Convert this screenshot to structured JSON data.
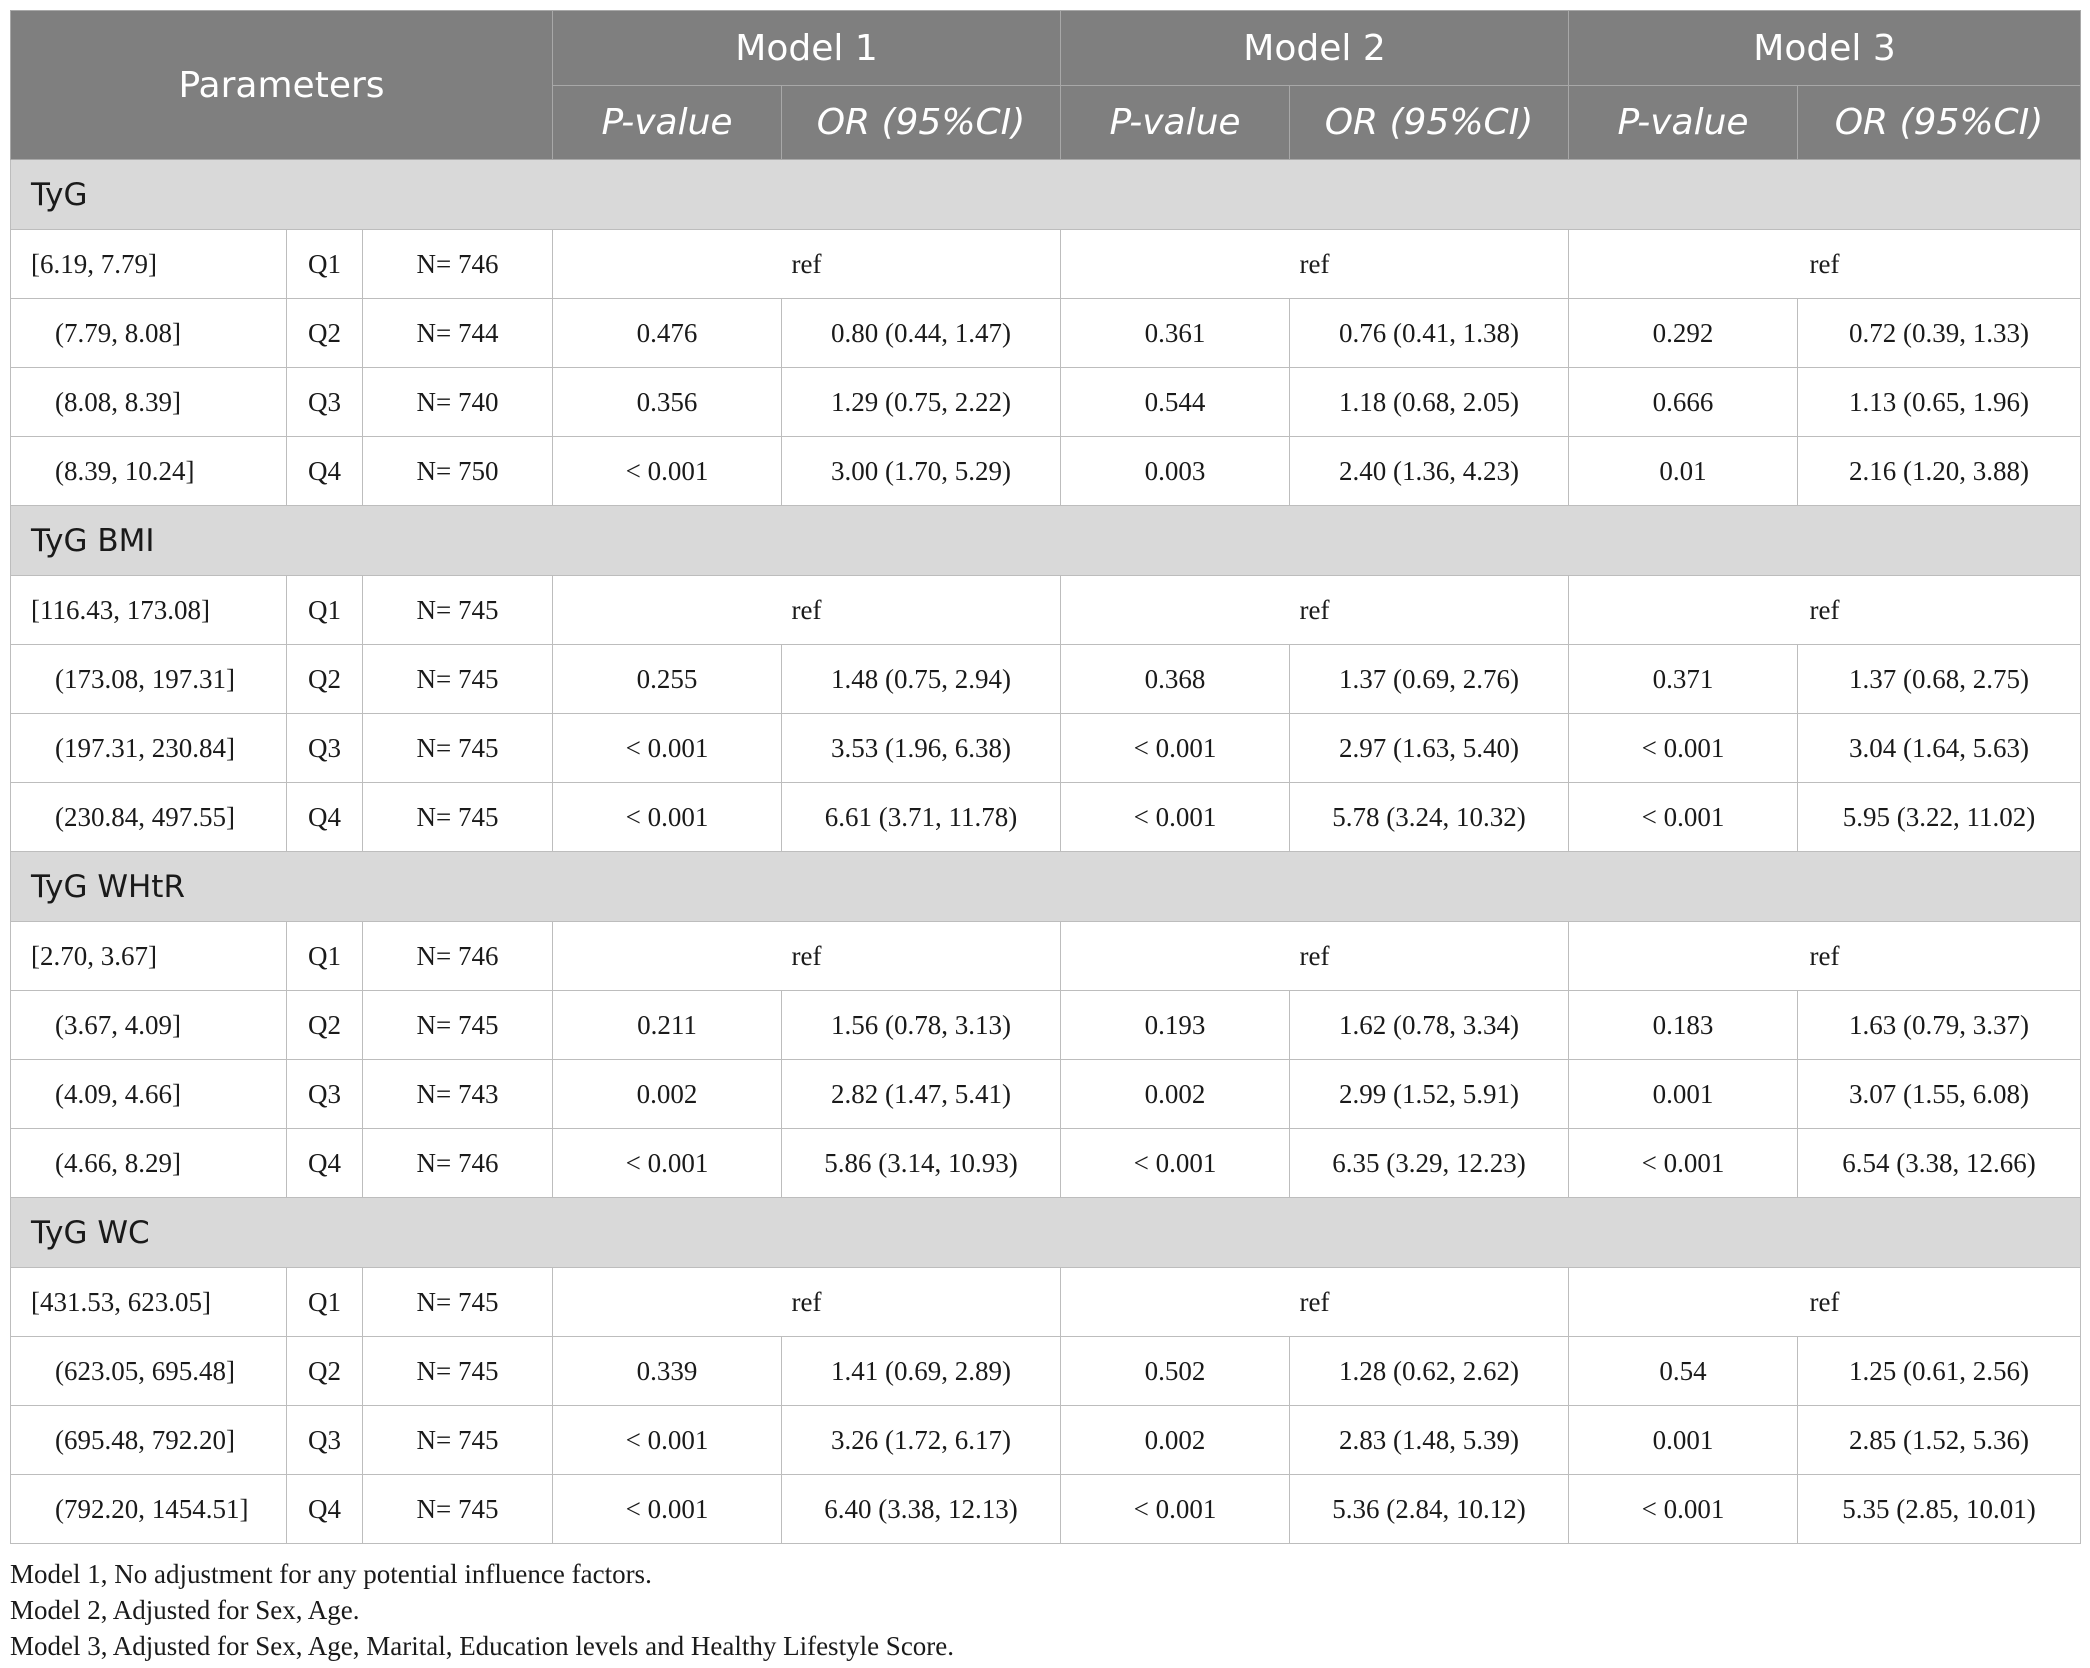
{
  "header": {
    "parameters": "Parameters",
    "models": [
      "Model 1",
      "Model 2",
      "Model 3"
    ],
    "pvalue": "P-value",
    "or": "OR (95%CI)"
  },
  "sections": [
    {
      "name": "TyG",
      "rows": [
        {
          "range": "[6.19, 7.79]",
          "q": "Q1",
          "n": "N= 746",
          "ref": "ref"
        },
        {
          "range": "(7.79, 8.08]",
          "q": "Q2",
          "n": "N= 744",
          "p1": "0.476",
          "or1": "0.80 (0.44, 1.47)",
          "p2": "0.361",
          "or2": "0.76 (0.41, 1.38)",
          "p3": "0.292",
          "or3": "0.72 (0.39, 1.33)"
        },
        {
          "range": "(8.08, 8.39]",
          "q": "Q3",
          "n": "N= 740",
          "p1": "0.356",
          "or1": "1.29 (0.75, 2.22)",
          "p2": "0.544",
          "or2": "1.18 (0.68, 2.05)",
          "p3": "0.666",
          "or3": "1.13 (0.65, 1.96)"
        },
        {
          "range": "(8.39, 10.24]",
          "q": "Q4",
          "n": "N= 750",
          "p1": "< 0.001",
          "or1": "3.00 (1.70, 5.29)",
          "p2": "0.003",
          "or2": "2.40 (1.36, 4.23)",
          "p3": "0.01",
          "or3": "2.16 (1.20, 3.88)"
        }
      ]
    },
    {
      "name": "TyG BMI",
      "rows": [
        {
          "range": "[116.43, 173.08]",
          "q": "Q1",
          "n": "N= 745",
          "ref": "ref"
        },
        {
          "range": "(173.08, 197.31]",
          "q": "Q2",
          "n": "N= 745",
          "p1": "0.255",
          "or1": "1.48 (0.75, 2.94)",
          "p2": "0.368",
          "or2": "1.37 (0.69, 2.76)",
          "p3": "0.371",
          "or3": "1.37 (0.68, 2.75)"
        },
        {
          "range": "(197.31, 230.84]",
          "q": "Q3",
          "n": "N= 745",
          "p1": "< 0.001",
          "or1": "3.53 (1.96, 6.38)",
          "p2": "< 0.001",
          "or2": "2.97 (1.63, 5.40)",
          "p3": "< 0.001",
          "or3": "3.04 (1.64, 5.63)"
        },
        {
          "range": "(230.84, 497.55]",
          "q": "Q4",
          "n": "N= 745",
          "p1": "< 0.001",
          "or1": "6.61 (3.71, 11.78)",
          "p2": "< 0.001",
          "or2": "5.78 (3.24, 10.32)",
          "p3": "< 0.001",
          "or3": "5.95 (3.22, 11.02)"
        }
      ]
    },
    {
      "name": "TyG WHtR",
      "rows": [
        {
          "range": "[2.70, 3.67]",
          "q": "Q1",
          "n": "N= 746",
          "ref": "ref"
        },
        {
          "range": "(3.67, 4.09]",
          "q": "Q2",
          "n": "N= 745",
          "p1": "0.211",
          "or1": "1.56 (0.78, 3.13)",
          "p2": "0.193",
          "or2": "1.62 (0.78, 3.34)",
          "p3": "0.183",
          "or3": "1.63 (0.79, 3.37)"
        },
        {
          "range": "(4.09, 4.66]",
          "q": "Q3",
          "n": "N= 743",
          "p1": "0.002",
          "or1": "2.82 (1.47, 5.41)",
          "p2": "0.002",
          "or2": "2.99 (1.52, 5.91)",
          "p3": "0.001",
          "or3": "3.07 (1.55, 6.08)"
        },
        {
          "range": "(4.66, 8.29]",
          "q": "Q4",
          "n": "N= 746",
          "p1": "< 0.001",
          "or1": "5.86 (3.14, 10.93)",
          "p2": "< 0.001",
          "or2": "6.35 (3.29, 12.23)",
          "p3": "< 0.001",
          "or3": "6.54 (3.38, 12.66)"
        }
      ]
    },
    {
      "name": "TyG WC",
      "rows": [
        {
          "range": "[431.53, 623.05]",
          "q": "Q1",
          "n": "N= 745",
          "ref": "ref"
        },
        {
          "range": "(623.05, 695.48]",
          "q": "Q2",
          "n": "N= 745",
          "p1": "0.339",
          "or1": "1.41 (0.69, 2.89)",
          "p2": "0.502",
          "or2": "1.28 (0.62, 2.62)",
          "p3": "0.54",
          "or3": "1.25 (0.61, 2.56)"
        },
        {
          "range": "(695.48, 792.20]",
          "q": "Q3",
          "n": "N= 745",
          "p1": "< 0.001",
          "or1": "3.26 (1.72, 6.17)",
          "p2": "0.002",
          "or2": "2.83 (1.48, 5.39)",
          "p3": "0.001",
          "or3": "2.85 (1.52, 5.36)"
        },
        {
          "range": "(792.20, 1454.51]",
          "q": "Q4",
          "n": "N= 745",
          "p1": "< 0.001",
          "or1": "6.40 (3.38, 12.13)",
          "p2": "< 0.001",
          "or2": "5.36 (2.84, 10.12)",
          "p3": "< 0.001",
          "or3": "5.35 (2.85, 10.01)"
        }
      ]
    }
  ],
  "footnotes": [
    "Model 1, No adjustment for any potential influence factors.",
    "Model 2, Adjusted for Sex, Age.",
    "Model 3, Adjusted for Sex, Age, Marital, Education levels and Healthy Lifestyle Score."
  ]
}
